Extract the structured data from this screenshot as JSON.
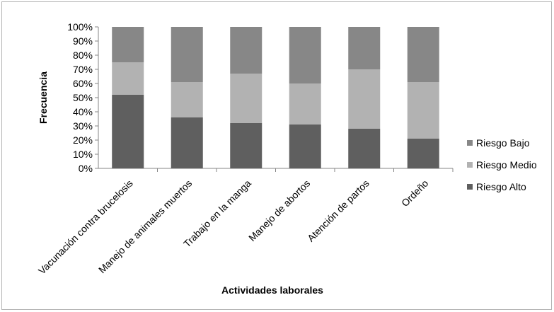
{
  "chart_data": {
    "type": "bar",
    "stacked": true,
    "percent_stacked": true,
    "categories": [
      "Vacunación contra brucelosis",
      "Manejo de animales muertos",
      "Trabajo en la manga",
      "Manejo de abortos",
      "Atención de partos",
      "Ordeño"
    ],
    "series": [
      {
        "name": "Riesgo Alto",
        "color": "#5f5f5f",
        "values": [
          52,
          36,
          32,
          31,
          28,
          21
        ]
      },
      {
        "name": "Riesgo Medio",
        "color": "#b2b2b2",
        "values": [
          23,
          25,
          35,
          29,
          42,
          40
        ]
      },
      {
        "name": "Riesgo Bajo",
        "color": "#878787",
        "values": [
          25,
          39,
          33,
          40,
          30,
          39
        ]
      }
    ],
    "yticks": [
      "0%",
      "10%",
      "20%",
      "30%",
      "40%",
      "50%",
      "60%",
      "70%",
      "80%",
      "90%",
      "100%"
    ],
    "ylim": [
      0,
      100
    ],
    "xlabel": "Actividades laborales",
    "ylabel": "Frecuencia",
    "grid": false,
    "legend": [
      "Riesgo Bajo",
      "Riesgo Medio",
      "Riesgo Alto"
    ],
    "legend_position": "right"
  }
}
